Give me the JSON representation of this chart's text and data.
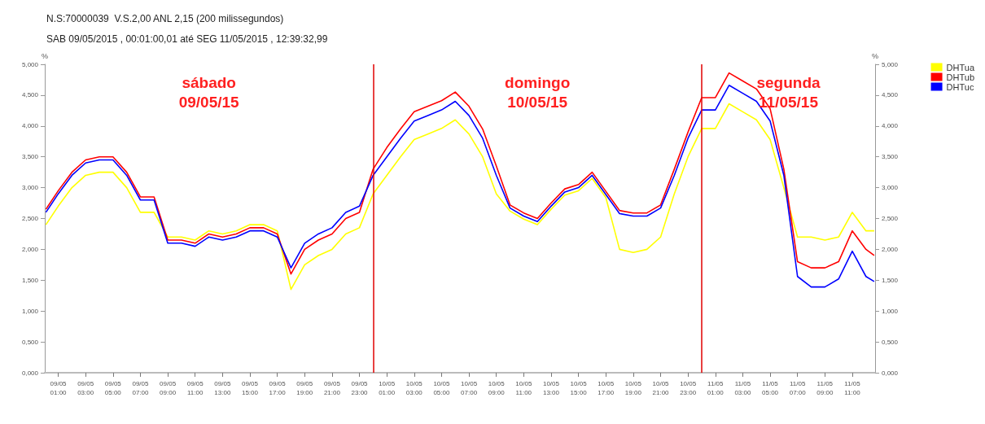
{
  "chart_data": {
    "type": "line",
    "title": "N.S:70000039  V.S.2,00 ANL 2,15 (200 milissegundos)",
    "subtitle": "SAB 09/05/2015 , 00:01:00,01 até SEG 11/05/2015 , 12:39:32,99",
    "ylabel": "%",
    "y2label": "%",
    "x": [
      "2015-05-09T00:06",
      "2015-05-09T01:00",
      "2015-05-09T02:00",
      "2015-05-09T03:00",
      "2015-05-09T04:00",
      "2015-05-09T05:00",
      "2015-05-09T06:00",
      "2015-05-09T07:00",
      "2015-05-09T08:00",
      "2015-05-09T09:00",
      "2015-05-09T10:00",
      "2015-05-09T11:00",
      "2015-05-09T12:00",
      "2015-05-09T13:00",
      "2015-05-09T14:00",
      "2015-05-09T15:00",
      "2015-05-09T16:00",
      "2015-05-09T17:00",
      "2015-05-09T18:00",
      "2015-05-09T19:00",
      "2015-05-09T20:00",
      "2015-05-09T21:00",
      "2015-05-09T22:00",
      "2015-05-09T23:00",
      "2015-05-10T00:00",
      "2015-05-10T01:00",
      "2015-05-10T02:00",
      "2015-05-10T03:00",
      "2015-05-10T04:00",
      "2015-05-10T05:00",
      "2015-05-10T06:00",
      "2015-05-10T07:00",
      "2015-05-10T08:00",
      "2015-05-10T09:00",
      "2015-05-10T10:00",
      "2015-05-10T11:00",
      "2015-05-10T12:00",
      "2015-05-10T13:00",
      "2015-05-10T14:00",
      "2015-05-10T15:00",
      "2015-05-10T16:00",
      "2015-05-10T17:00",
      "2015-05-10T18:00",
      "2015-05-10T19:00",
      "2015-05-10T20:00",
      "2015-05-10T21:00",
      "2015-05-10T22:00",
      "2015-05-10T23:00",
      "2015-05-11T00:00",
      "2015-05-11T01:00",
      "2015-05-11T02:00",
      "2015-05-11T03:00",
      "2015-05-11T04:00",
      "2015-05-11T05:00",
      "2015-05-11T06:00",
      "2015-05-11T07:00",
      "2015-05-11T08:00",
      "2015-05-11T09:00",
      "2015-05-11T10:00",
      "2015-05-11T11:00",
      "2015-05-11T12:00",
      "2015-05-11T12:36"
    ],
    "series": [
      {
        "name": "DHTua",
        "color": "#ffff00",
        "values": [
          2.4,
          2.7,
          3.0,
          3.2,
          3.25,
          3.25,
          3.0,
          2.6,
          2.6,
          2.2,
          2.2,
          2.15,
          2.3,
          2.25,
          2.3,
          2.4,
          2.4,
          2.3,
          1.35,
          1.75,
          1.9,
          2.0,
          2.25,
          2.35,
          2.9,
          3.2,
          3.5,
          3.78,
          3.87,
          3.96,
          4.1,
          3.87,
          3.5,
          2.9,
          2.62,
          2.49,
          2.4,
          2.65,
          2.88,
          2.95,
          3.15,
          2.84,
          2.0,
          1.95,
          2.0,
          2.2,
          2.9,
          3.5,
          3.96,
          3.96,
          4.36,
          4.23,
          4.1,
          3.78,
          3.0,
          2.2,
          2.2,
          2.15,
          2.2,
          2.6,
          2.3,
          2.3
        ]
      },
      {
        "name": "DHTub",
        "color": "#ff0000",
        "values": [
          2.65,
          2.95,
          3.25,
          3.45,
          3.5,
          3.5,
          3.25,
          2.85,
          2.85,
          2.15,
          2.15,
          2.1,
          2.25,
          2.2,
          2.25,
          2.35,
          2.35,
          2.25,
          1.6,
          2.0,
          2.15,
          2.25,
          2.5,
          2.6,
          3.3,
          3.65,
          3.95,
          4.23,
          4.32,
          4.41,
          4.55,
          4.32,
          3.95,
          3.35,
          2.72,
          2.59,
          2.5,
          2.75,
          2.98,
          3.05,
          3.25,
          2.94,
          2.63,
          2.59,
          2.59,
          2.72,
          3.3,
          3.9,
          4.46,
          4.46,
          4.86,
          4.73,
          4.6,
          4.28,
          3.3,
          1.8,
          1.7,
          1.7,
          1.8,
          2.3,
          2.0,
          1.9
        ]
      },
      {
        "name": "DHTuc",
        "color": "#0000ff",
        "values": [
          2.6,
          2.9,
          3.2,
          3.4,
          3.45,
          3.45,
          3.2,
          2.8,
          2.8,
          2.1,
          2.1,
          2.05,
          2.2,
          2.15,
          2.2,
          2.3,
          2.3,
          2.2,
          1.7,
          2.1,
          2.25,
          2.35,
          2.6,
          2.7,
          3.2,
          3.5,
          3.8,
          4.08,
          4.17,
          4.26,
          4.4,
          4.17,
          3.8,
          3.2,
          2.67,
          2.54,
          2.45,
          2.7,
          2.93,
          3.0,
          3.2,
          2.89,
          2.58,
          2.54,
          2.54,
          2.67,
          3.2,
          3.8,
          4.26,
          4.26,
          4.66,
          4.53,
          4.4,
          4.08,
          3.2,
          1.56,
          1.39,
          1.39,
          1.52,
          1.97,
          1.56,
          1.48
        ]
      }
    ],
    "xlim": [
      "2015-05-09T00:01",
      "2015-05-11T12:40"
    ],
    "xticks": [
      {
        "value": "2015-05-09T01:00",
        "label": "09/05\n01:00"
      },
      {
        "value": "2015-05-09T03:00",
        "label": "09/05\n03:00"
      },
      {
        "value": "2015-05-09T05:00",
        "label": "09/05\n05:00"
      },
      {
        "value": "2015-05-09T07:00",
        "label": "09/05\n07:00"
      },
      {
        "value": "2015-05-09T09:00",
        "label": "09/05\n09:00"
      },
      {
        "value": "2015-05-09T11:00",
        "label": "09/05\n11:00"
      },
      {
        "value": "2015-05-09T13:00",
        "label": "09/05\n13:00"
      },
      {
        "value": "2015-05-09T15:00",
        "label": "09/05\n15:00"
      },
      {
        "value": "2015-05-09T17:00",
        "label": "09/05\n17:00"
      },
      {
        "value": "2015-05-09T19:00",
        "label": "09/05\n19:00"
      },
      {
        "value": "2015-05-09T21:00",
        "label": "09/05\n21:00"
      },
      {
        "value": "2015-05-09T23:00",
        "label": "09/05\n23:00"
      },
      {
        "value": "2015-05-10T01:00",
        "label": "10/05\n01:00"
      },
      {
        "value": "2015-05-10T03:00",
        "label": "10/05\n03:00"
      },
      {
        "value": "2015-05-10T05:00",
        "label": "10/05\n05:00"
      },
      {
        "value": "2015-05-10T07:00",
        "label": "10/05\n07:00"
      },
      {
        "value": "2015-05-10T09:00",
        "label": "10/05\n09:00"
      },
      {
        "value": "2015-05-10T11:00",
        "label": "10/05\n11:00"
      },
      {
        "value": "2015-05-10T13:00",
        "label": "10/05\n13:00"
      },
      {
        "value": "2015-05-10T15:00",
        "label": "10/05\n15:00"
      },
      {
        "value": "2015-05-10T17:00",
        "label": "10/05\n17:00"
      },
      {
        "value": "2015-05-10T19:00",
        "label": "10/05\n19:00"
      },
      {
        "value": "2015-05-10T21:00",
        "label": "10/05\n21:00"
      },
      {
        "value": "2015-05-10T23:00",
        "label": "10/05\n23:00"
      },
      {
        "value": "2015-05-11T01:00",
        "label": "11/05\n01:00"
      },
      {
        "value": "2015-05-11T03:00",
        "label": "11/05\n03:00"
      },
      {
        "value": "2015-05-11T05:00",
        "label": "11/05\n05:00"
      },
      {
        "value": "2015-05-11T07:00",
        "label": "11/05\n07:00"
      },
      {
        "value": "2015-05-11T09:00",
        "label": "11/05\n09:00"
      },
      {
        "value": "2015-05-11T11:00",
        "label": "11/05\n11:00"
      }
    ],
    "ylim": [
      0,
      5
    ],
    "yticks": [
      {
        "value": 0,
        "label": "0,000"
      },
      {
        "value": 0.5,
        "label": "0,500"
      },
      {
        "value": 1,
        "label": "1,000"
      },
      {
        "value": 1.5,
        "label": "1,500"
      },
      {
        "value": 2,
        "label": "2,000"
      },
      {
        "value": 2.5,
        "label": "2,500"
      },
      {
        "value": 3,
        "label": "3,000"
      },
      {
        "value": 3.5,
        "label": "3,500"
      },
      {
        "value": 4,
        "label": "4,000"
      },
      {
        "value": 4.5,
        "label": "4,500"
      },
      {
        "value": 5,
        "label": "5,000"
      }
    ],
    "y2lim": [
      0,
      5
    ],
    "y2ticks": [
      {
        "value": 0,
        "label": "0,000"
      },
      {
        "value": 0.5,
        "label": "0,500"
      },
      {
        "value": 1,
        "label": "1,000"
      },
      {
        "value": 1.5,
        "label": "1,500"
      },
      {
        "value": 2,
        "label": "2,000"
      },
      {
        "value": 2.5,
        "label": "2,500"
      },
      {
        "value": 3,
        "label": "3,000"
      },
      {
        "value": 3.5,
        "label": "3,500"
      },
      {
        "value": 4,
        "label": "4,000"
      },
      {
        "value": 4.5,
        "label": "4,500"
      },
      {
        "value": 5,
        "label": "5,000"
      }
    ],
    "ref_lines": [
      {
        "axis": "x",
        "value": "2015-05-10T00:00",
        "color": "#e00000"
      },
      {
        "axis": "x",
        "value": "2015-05-11T00:00",
        "color": "#e00000"
      }
    ],
    "annotations": [
      "sábado\n09/05/15",
      "domingo\n10/05/15",
      "segunda\n11/05/15"
    ],
    "grid": false,
    "legend": "top right",
    "marker": "none",
    "line_style": "solid"
  }
}
